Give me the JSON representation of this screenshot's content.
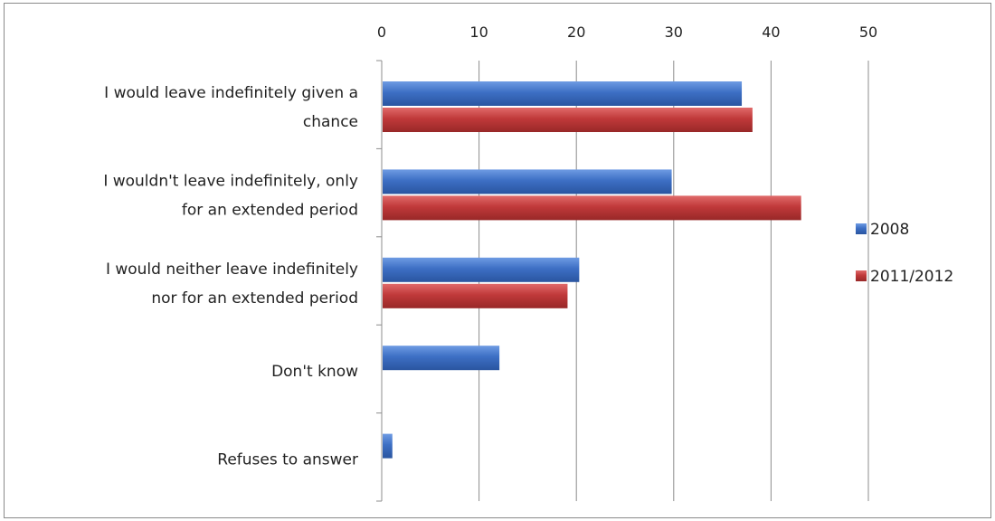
{
  "chart_data": {
    "type": "bar",
    "orientation": "horizontal",
    "title": "",
    "xlabel": "",
    "ylabel": "",
    "xlim": [
      0,
      50
    ],
    "x_ticks": [
      0,
      10,
      20,
      30,
      40,
      50
    ],
    "x_axis_position": "top",
    "grid": true,
    "legend_position": "right",
    "categories": [
      [
        "I would leave indefinitely given a",
        "chance"
      ],
      [
        "I wouldn't leave indefinitely, only",
        "for an extended period"
      ],
      [
        "I would neither leave indefinitely",
        "nor for an extended period"
      ],
      [
        "Don't know"
      ],
      [
        "Refuses to answer"
      ]
    ],
    "series": [
      {
        "name": "2008",
        "color": "#3d6fc4",
        "values": [
          36.9,
          29.7,
          20.2,
          12.0,
          1.0
        ]
      },
      {
        "name": "2011/2012",
        "color": "#c0393a",
        "values": [
          38.0,
          43.0,
          19.0,
          null,
          null
        ]
      }
    ]
  }
}
